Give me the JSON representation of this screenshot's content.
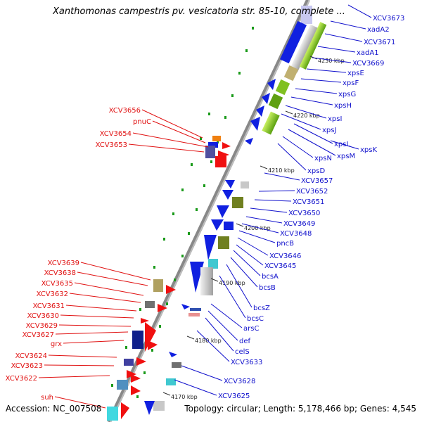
{
  "title": "Xanthomonas campestris pv. vesicatoria str. 85-10, complete ...",
  "footer": {
    "accession": "Accession: NC_007508",
    "topology": "Topology: circular; Length: 5,178,466 bp; Genes: 4,545"
  },
  "colors": {
    "left_label": "#e01010",
    "right_label": "#1010cc",
    "leader_left": "#e01010",
    "leader_right": "#1010cc"
  },
  "ticks": [
    {
      "label": "4230 kbp"
    },
    {
      "label": "4220 kbp"
    },
    {
      "label": "4210 kbp"
    },
    {
      "label": "4200 kbp"
    },
    {
      "label": "4190 kbp"
    },
    {
      "label": "4180 kbp"
    },
    {
      "label": "4170 kbp"
    }
  ],
  "right_genes": [
    "XCV3673",
    "xadA2",
    "XCV3671",
    "xadA1",
    "XCV3669",
    "xpsE",
    "xpsF",
    "xpsG",
    "xpsH",
    "xpsI",
    "xpsJ",
    "xpsK",
    "xpsL",
    "xpsM",
    "xpsN",
    "xpsD",
    "XCV3657",
    "XCV3652",
    "XCV3651",
    "XCV3650",
    "XCV3649",
    "XCV3648",
    "pncB",
    "XCV3646",
    "XCV3645",
    "bcsA",
    "bcsB",
    "bcsZ",
    "bcsC",
    "arsC",
    "def",
    "celS",
    "XCV3633",
    "XCV3628",
    "XCV3625"
  ],
  "left_genes": [
    "XCV3656",
    "pnuC",
    "XCV3654",
    "XCV3653",
    "XCV3639",
    "XCV3638",
    "XCV3635",
    "XCV3632",
    "XCV3631",
    "XCV3630",
    "XCV3629",
    "XCV3627",
    "grx",
    "XCV3624",
    "XCV3623",
    "XCV3622",
    "suh"
  ]
}
